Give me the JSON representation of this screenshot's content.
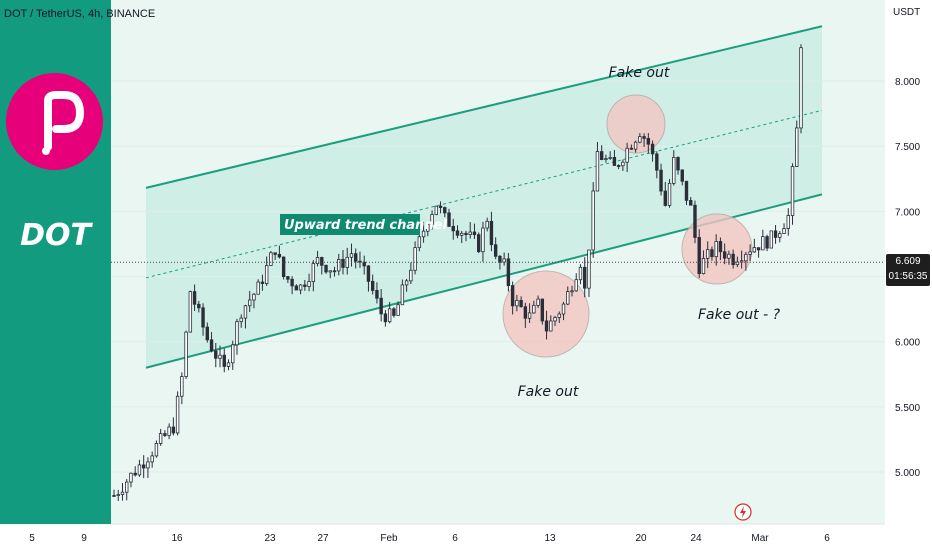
{
  "header": {
    "symbol": "DOT / TetherUS, 4h, BINANCE",
    "currency": "USDT"
  },
  "logo": {
    "label": "DOT",
    "brand_color": "#e6007a",
    "background": "#129b7e"
  },
  "price_tag": {
    "price": "6.609",
    "countdown": "01:56:35"
  },
  "chart_data": {
    "type": "candlestick",
    "yaxis": {
      "ticks": [
        "8.000",
        "7.500",
        "7.000",
        "6.500",
        "6.000",
        "5.500",
        "5.000"
      ],
      "range": [
        4.55,
        8.6
      ]
    },
    "xaxis": {
      "ticks": [
        "5",
        "9",
        "16",
        "23",
        "27",
        "Feb",
        "6",
        "13",
        "20",
        "24",
        "Mar",
        "6"
      ]
    },
    "close_path": [
      [
        0,
        4.82
      ],
      [
        14,
        5.35
      ],
      [
        16,
        5.72
      ],
      [
        18,
        6.39
      ],
      [
        22,
        6.02
      ],
      [
        26,
        5.78
      ],
      [
        30,
        6.24
      ],
      [
        34,
        6.41
      ],
      [
        38,
        6.72
      ],
      [
        40,
        6.5
      ],
      [
        44,
        6.42
      ],
      [
        48,
        6.62
      ],
      [
        52,
        6.55
      ],
      [
        56,
        6.68
      ],
      [
        60,
        6.47
      ],
      [
        63,
        6.22
      ],
      [
        66,
        6.18
      ],
      [
        70,
        6.58
      ],
      [
        74,
        6.95
      ],
      [
        76,
        7.06
      ],
      [
        78,
        6.94
      ],
      [
        82,
        6.85
      ],
      [
        86,
        6.74
      ],
      [
        88,
        6.95
      ],
      [
        90,
        6.62
      ],
      [
        92,
        6.58
      ],
      [
        94,
        6.32
      ],
      [
        98,
        6.19
      ],
      [
        100,
        6.28
      ],
      [
        102,
        6.1
      ],
      [
        106,
        6.28
      ],
      [
        110,
        6.62
      ],
      [
        111,
        6.39
      ],
      [
        114,
        7.45
      ],
      [
        118,
        7.33
      ],
      [
        121,
        7.48
      ],
      [
        124,
        7.62
      ],
      [
        126,
        7.52
      ],
      [
        128,
        7.32
      ],
      [
        130,
        7.05
      ],
      [
        132,
        7.38
      ],
      [
        134,
        7.2
      ],
      [
        136,
        7.02
      ],
      [
        138,
        6.58
      ],
      [
        142,
        6.72
      ],
      [
        146,
        6.64
      ],
      [
        150,
        6.72
      ],
      [
        155,
        6.79
      ],
      [
        159,
        6.96
      ],
      [
        161,
        7.62
      ],
      [
        162,
        8.3
      ]
    ],
    "channel": {
      "upper": {
        "from": 7.18,
        "to": 8.42
      },
      "lower": {
        "from": 5.8,
        "to": 7.13
      }
    },
    "last_price": 6.609,
    "annotations": [
      "Upward trend channel",
      "Fake out",
      "Fake out",
      "Fake out - ?"
    ]
  }
}
